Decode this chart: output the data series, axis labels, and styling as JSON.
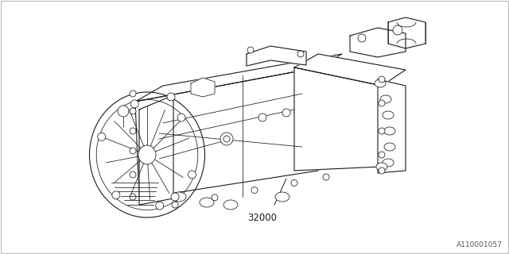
{
  "background_color": "#ffffff",
  "line_color": "#1a1a1a",
  "part_number": "32000",
  "ref_number": "A110001057",
  "fig_width": 6.4,
  "fig_height": 3.2,
  "dpi": 100,
  "lw_main": 0.8,
  "lw_detail": 0.55
}
